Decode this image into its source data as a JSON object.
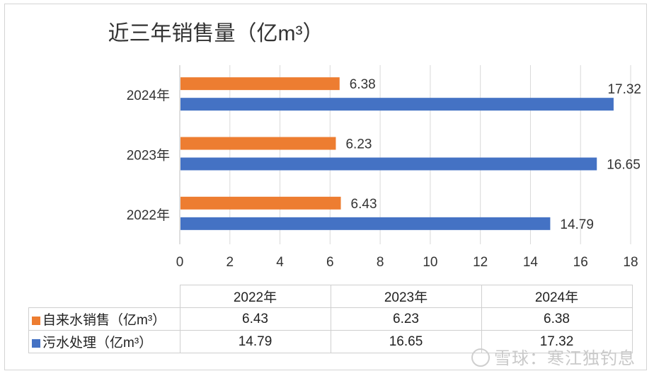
{
  "chart_data": {
    "type": "bar",
    "orientation": "horizontal",
    "title": "近三年销售量（亿m³）",
    "categories": [
      "2024年",
      "2023年",
      "2022年"
    ],
    "series": [
      {
        "name": "自来水销售（亿m³）",
        "color": "#ed7d31",
        "values": [
          6.38,
          6.23,
          6.43
        ]
      },
      {
        "name": "污水处理（亿m³）",
        "color": "#4472c4",
        "values": [
          17.32,
          16.65,
          14.79
        ]
      }
    ],
    "xlim": [
      0,
      18
    ],
    "xticks": [
      0,
      2,
      4,
      6,
      8,
      10,
      12,
      14,
      16,
      18
    ],
    "grid": true,
    "legend": "table-below"
  },
  "table": {
    "headers": [
      "2022年",
      "2023年",
      "2024年"
    ],
    "rows": [
      {
        "label": "自来水销售（亿m³）",
        "color": "#ed7d31",
        "cells": [
          "6.43",
          "6.23",
          "6.38"
        ]
      },
      {
        "label": "污水处理（亿m³）",
        "color": "#4472c4",
        "cells": [
          "14.79",
          "16.65",
          "17.32"
        ]
      }
    ]
  },
  "watermark": "雪球：寒江独钓息"
}
